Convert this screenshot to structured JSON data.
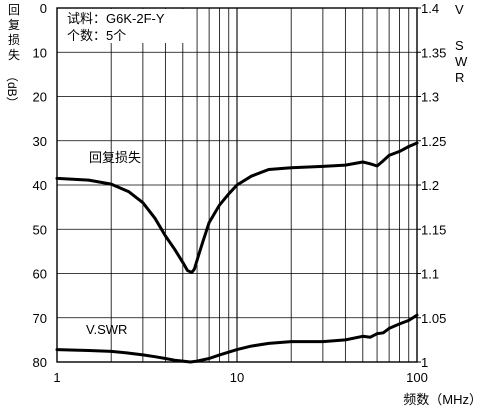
{
  "chart_data": {
    "type": "line",
    "xscale": "log",
    "xlim": [
      1,
      100
    ],
    "xticks": [
      1,
      10,
      100
    ],
    "xlabel": "频数（MHz）",
    "y_left": {
      "label": "回复损失（dB）",
      "lim": [
        0,
        80
      ],
      "ticks": [
        0,
        10,
        20,
        30,
        40,
        50,
        60,
        70,
        80
      ],
      "inverted": true
    },
    "y_right": {
      "label": "VSWR",
      "lim": [
        1,
        1.4
      ],
      "ticks": [
        1,
        1.05,
        1.1,
        1.15,
        1.2,
        1.25,
        1.3,
        1.35,
        1.4
      ]
    },
    "grid": true,
    "legend_box": {
      "line1": "试料：G6K-2F-Y",
      "line2": "个数：5个"
    },
    "series": [
      {
        "name": "回复损失",
        "axis": "left",
        "x": [
          1,
          1.5,
          2,
          2.5,
          3,
          3.5,
          4,
          4.5,
          5,
          5.3,
          5.6,
          5.8,
          6.1,
          6.5,
          7,
          8,
          9,
          10,
          12,
          15,
          20,
          30,
          40,
          50,
          55,
          60,
          65,
          70,
          80,
          90,
          100
        ],
        "y": [
          38.5,
          38.9,
          39.8,
          41.5,
          44,
          47.5,
          51.5,
          54.5,
          57.5,
          59.3,
          59.8,
          59,
          56,
          52.5,
          48.5,
          44.5,
          42,
          40,
          38,
          36.5,
          36.1,
          35.8,
          35.5,
          34.8,
          35.2,
          35.7,
          34.5,
          33.3,
          32.4,
          31.3,
          30.5
        ]
      },
      {
        "name": "V.SWR",
        "axis": "right",
        "x": [
          1,
          1.5,
          2,
          2.5,
          3,
          3.5,
          4,
          4.5,
          5,
          5.5,
          6,
          7,
          8,
          10,
          12,
          15,
          20,
          30,
          40,
          50,
          55,
          60,
          65,
          70,
          80,
          90,
          100
        ],
        "y": [
          1.014,
          1.013,
          1.012,
          1.01,
          1.008,
          1.006,
          1.004,
          1.002,
          1.001,
          1.0,
          1.001,
          1.004,
          1.008,
          1.014,
          1.018,
          1.021,
          1.023,
          1.023,
          1.025,
          1.029,
          1.028,
          1.032,
          1.033,
          1.038,
          1.043,
          1.047,
          1.053
        ]
      }
    ]
  }
}
